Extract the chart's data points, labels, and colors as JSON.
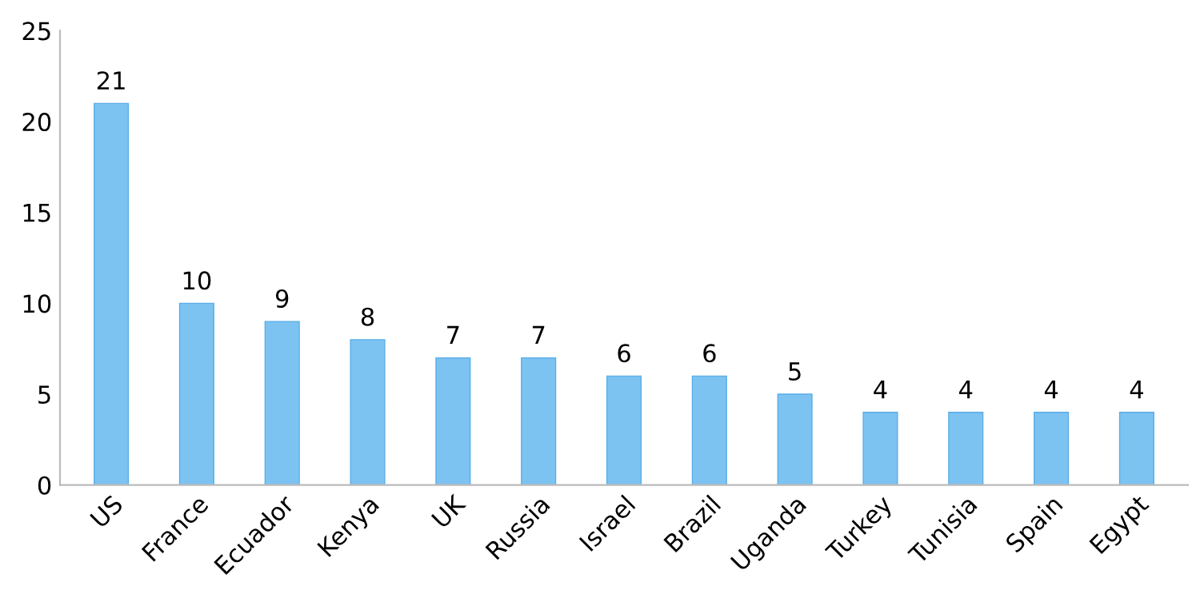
{
  "chart_data": {
    "type": "bar",
    "categories": [
      "US",
      "France",
      "Ecuador",
      "Kenya",
      "UK",
      "Russia",
      "Israel",
      "Brazil",
      "Uganda",
      "Turkey",
      "Tunisia",
      "Spain",
      "Egypt"
    ],
    "values": [
      21,
      10,
      9,
      8,
      7,
      7,
      6,
      6,
      5,
      4,
      4,
      4,
      4
    ],
    "color": "#7cc3f2",
    "ylim": [
      0,
      25
    ],
    "yticks": [
      0,
      5,
      10,
      15,
      20,
      25
    ],
    "data_labels": true,
    "grid": false,
    "legend": false
  }
}
